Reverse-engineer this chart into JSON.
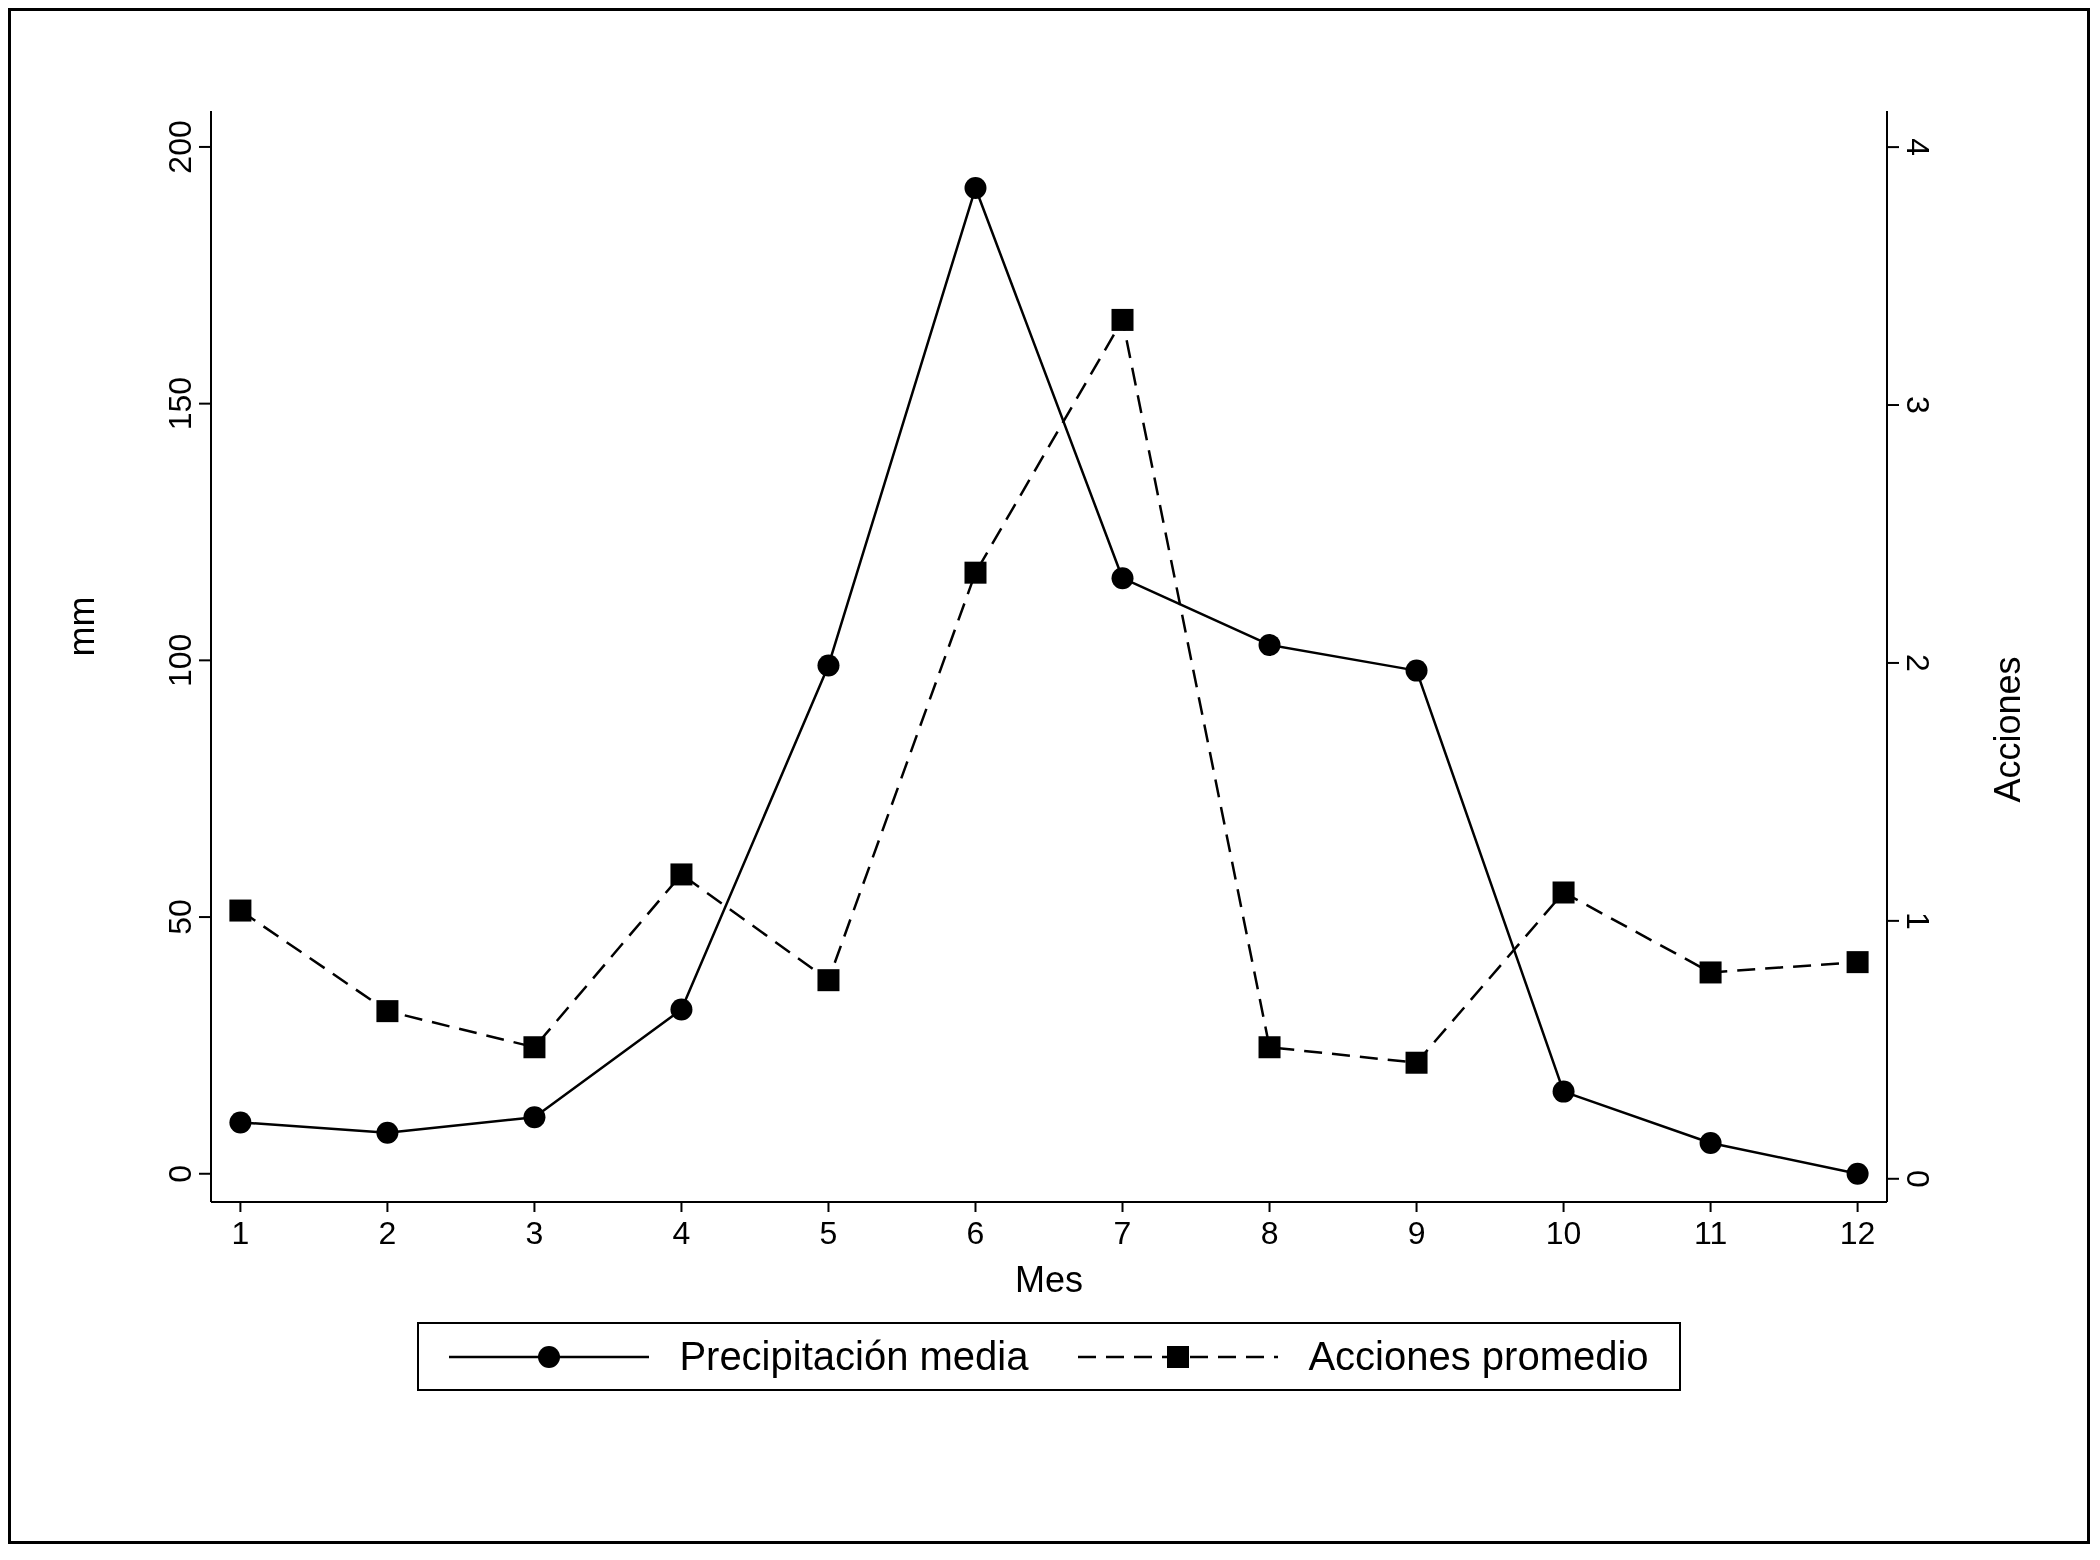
{
  "chart_data": {
    "type": "line",
    "xlabel": "Mes",
    "ylabel": "mm",
    "y2label": "Acciones",
    "x": [
      1,
      2,
      3,
      4,
      5,
      6,
      7,
      8,
      9,
      10,
      11,
      12
    ],
    "xlim": [
      0.8,
      12.2
    ],
    "xticks": [
      1,
      2,
      3,
      4,
      5,
      6,
      7,
      8,
      9,
      10,
      11,
      12
    ],
    "ylim": [
      -5.5,
      207
    ],
    "yticks": [
      0,
      50,
      100,
      150,
      200
    ],
    "y2lim": [
      -0.09,
      4.14
    ],
    "y2ticks": [
      0,
      1,
      2,
      3,
      4
    ],
    "series": [
      {
        "name": "Precipitación media",
        "color": "#000000",
        "line_style": "solid",
        "marker": "circle",
        "values": [
          10,
          8,
          11,
          32,
          99,
          192,
          116,
          103,
          98,
          16,
          6,
          0
        ]
      },
      {
        "name": "Acciones promedio",
        "color": "#000000",
        "line_style": "dashed",
        "marker": "square",
        "axis": "y2",
        "values": [
          1.04,
          0.65,
          0.51,
          1.18,
          0.77,
          2.35,
          3.33,
          0.51,
          0.45,
          1.11,
          0.8,
          0.84
        ]
      }
    ],
    "legend": "bottom"
  }
}
